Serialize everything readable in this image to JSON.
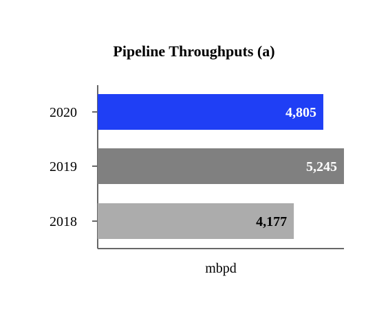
{
  "chart_data": {
    "type": "bar",
    "orientation": "horizontal",
    "title": "Pipeline Throughputs (a)",
    "xlabel": "mbpd",
    "ylabel": "",
    "categories": [
      "2020",
      "2019",
      "2018"
    ],
    "values": [
      4805,
      5245,
      4177
    ],
    "value_labels": [
      "4,805",
      "5,245",
      "4,177"
    ],
    "bar_colors": [
      "#1f3ff5",
      "#808080",
      "#acacac"
    ],
    "label_colors": [
      "#ffffff",
      "#ffffff",
      "#000000"
    ],
    "xlim": [
      0,
      5245
    ],
    "grid": false,
    "legend": "none",
    "axis_color": "#666666"
  }
}
